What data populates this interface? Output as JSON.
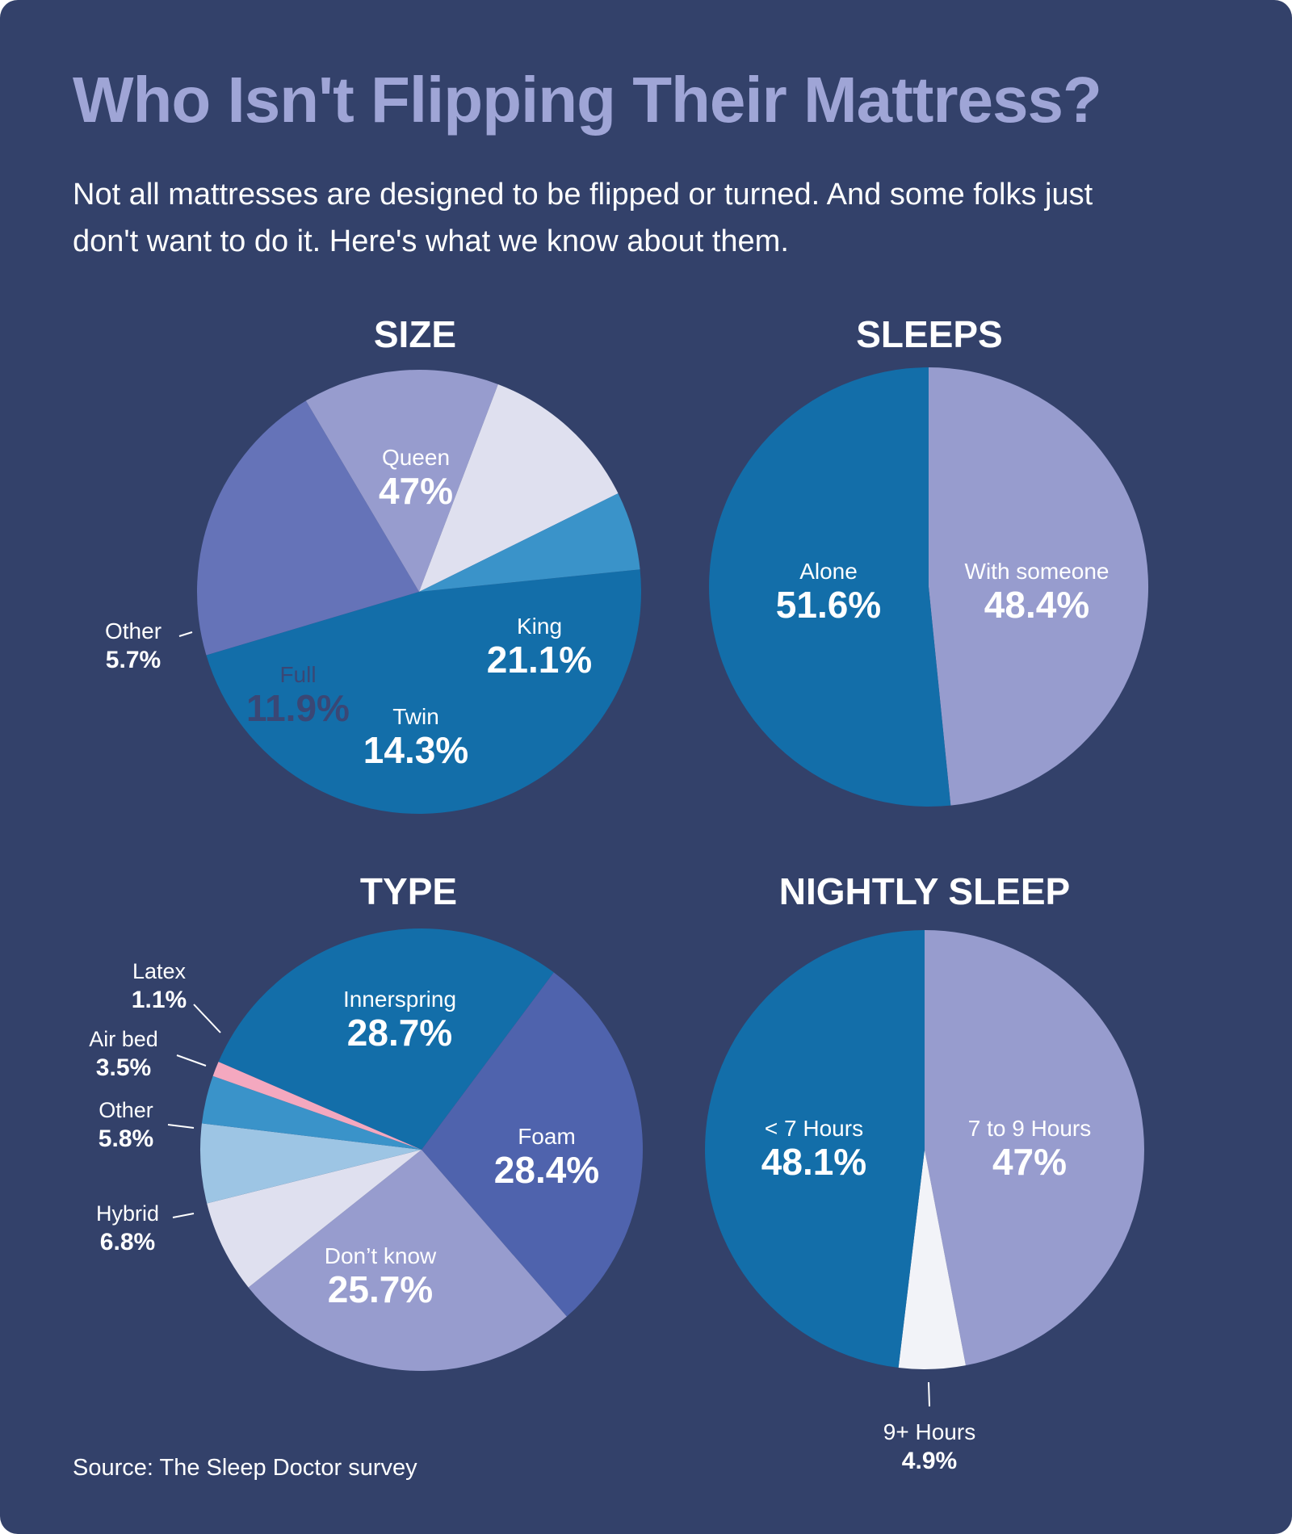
{
  "title": "Who Isn't Flipping Their Mattress?",
  "subtitle": "Not all mattresses are designed to be flipped or turned. And some folks just don't want to do it. Here's what we know about them.",
  "source": "Source: The Sleep Doctor survey",
  "colors": {
    "background": "#33416a",
    "title": "#9fa5d6",
    "dark_blue": "#136ea9",
    "medium_blue": "#3a93c9",
    "light_blue": "#9dc5e4",
    "indigo": "#6573b8",
    "foam_indigo": "#4f63ad",
    "lavender": "#979cce",
    "pale": "#dfe0ef",
    "white_slice": "#f2f3f8",
    "pink": "#f4a8bf"
  },
  "chart_data": [
    {
      "type": "pie",
      "title": "SIZE",
      "slices": [
        {
          "label": "Queen",
          "display": "47%",
          "value": 47,
          "color": "#136ea9"
        },
        {
          "label": "King",
          "display": "21.1%",
          "value": 21.1,
          "color": "#6573b8"
        },
        {
          "label": "Twin",
          "display": "14.3%",
          "value": 14.3,
          "color": "#979cce"
        },
        {
          "label": "Full",
          "display": "11.9%",
          "value": 11.9,
          "color": "#dfe0ef"
        },
        {
          "label": "Other",
          "display": "5.7%",
          "value": 5.7,
          "color": "#3a93c9"
        }
      ]
    },
    {
      "type": "pie",
      "title": "SLEEPS",
      "slices": [
        {
          "label": "With someone",
          "display": "48.4%",
          "value": 48.4,
          "color": "#979cce"
        },
        {
          "label": "Alone",
          "display": "51.6%",
          "value": 51.6,
          "color": "#136ea9"
        }
      ]
    },
    {
      "type": "pie",
      "title": "TYPE",
      "slices": [
        {
          "label": "Innerspring",
          "display": "28.7%",
          "value": 28.7,
          "color": "#136ea9"
        },
        {
          "label": "Foam",
          "display": "28.4%",
          "value": 28.4,
          "color": "#4f63ad"
        },
        {
          "label": "Don’t know",
          "display": "25.7%",
          "value": 25.7,
          "color": "#979cce"
        },
        {
          "label": "Hybrid",
          "display": "6.8%",
          "value": 6.8,
          "color": "#dfe0ef"
        },
        {
          "label": "Other",
          "display": "5.8%",
          "value": 5.8,
          "color": "#9dc5e4"
        },
        {
          "label": "Air bed",
          "display": "3.5%",
          "value": 3.5,
          "color": "#3a93c9"
        },
        {
          "label": "Latex",
          "display": "1.1%",
          "value": 1.1,
          "color": "#f4a8bf"
        }
      ]
    },
    {
      "type": "pie",
      "title": "NIGHTLY SLEEP",
      "slices": [
        {
          "label": "7 to 9 Hours",
          "display": "47%",
          "value": 47,
          "color": "#979cce"
        },
        {
          "label": "9+ Hours",
          "display": "4.9%",
          "value": 4.9,
          "color": "#f2f3f8"
        },
        {
          "label": "< 7 Hours",
          "display": "48.1%",
          "value": 48.1,
          "color": "#136ea9"
        }
      ]
    }
  ]
}
